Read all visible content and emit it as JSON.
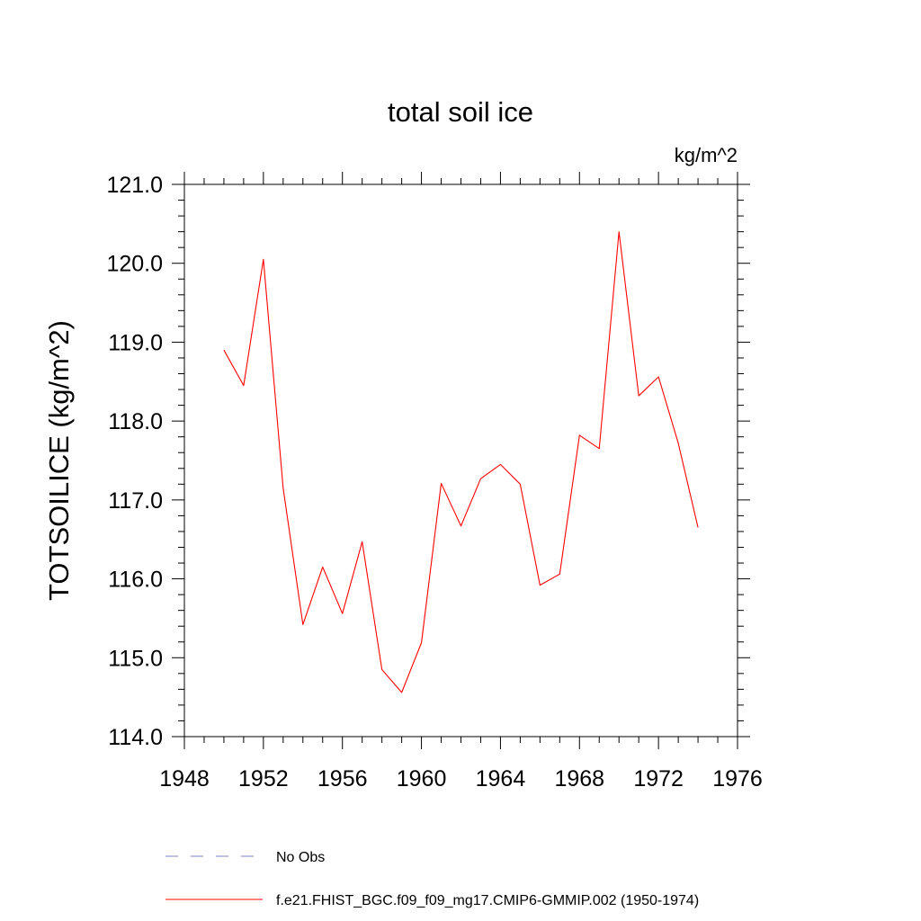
{
  "chart_data": {
    "type": "line",
    "title": "total soil ice",
    "units": "kg/m^2",
    "ylabel": "TOTSOILICE  (kg/m^2)",
    "xlabel": "",
    "xlim": [
      1948,
      1976
    ],
    "ylim": [
      114.0,
      121.0
    ],
    "x_ticks": [
      1948,
      1952,
      1956,
      1960,
      1964,
      1968,
      1972,
      1976
    ],
    "x_tick_labels": [
      "1948",
      "1952",
      "1956",
      "1960",
      "1964",
      "1968",
      "1972",
      "1976"
    ],
    "y_ticks": [
      114.0,
      115.0,
      116.0,
      117.0,
      118.0,
      119.0,
      120.0,
      121.0
    ],
    "y_tick_labels": [
      "114.0",
      "115.0",
      "116.0",
      "117.0",
      "118.0",
      "119.0",
      "120.0",
      "121.0"
    ],
    "grid": false,
    "legend_placement": "bottom",
    "series": [
      {
        "name": "f.e21.FHIST_BGC.f09_f09_mg17.CMIP6-GMMIP.002 (1950-1974)",
        "color": "#ff0000",
        "style": "solid",
        "x": [
          1950,
          1951,
          1952,
          1953,
          1954,
          1955,
          1956,
          1957,
          1958,
          1959,
          1960,
          1961,
          1962,
          1963,
          1964,
          1965,
          1966,
          1967,
          1968,
          1969,
          1970,
          1971,
          1972,
          1973,
          1974
        ],
        "values": [
          118.9,
          118.45,
          120.05,
          117.15,
          115.42,
          116.15,
          115.56,
          116.47,
          114.85,
          114.56,
          115.19,
          117.21,
          116.67,
          117.27,
          117.45,
          117.2,
          115.92,
          116.06,
          117.82,
          117.65,
          120.4,
          118.32,
          118.56,
          117.72,
          116.65
        ]
      }
    ],
    "legend": [
      {
        "label": "No Obs",
        "color": "#8080c0",
        "style": "dashed"
      },
      {
        "label": "f.e21.FHIST_BGC.f09_f09_mg17.CMIP6-GMMIP.002 (1950-1974)",
        "color": "#ff0000",
        "style": "solid"
      }
    ]
  }
}
